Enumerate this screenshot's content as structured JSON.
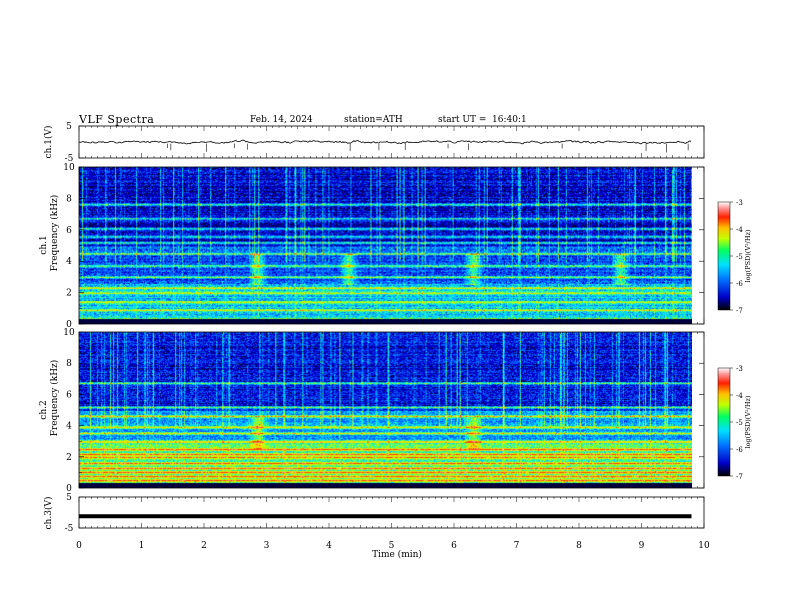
{
  "header": {
    "title": "VLF  Spectra",
    "date": "Feb. 14, 2024",
    "station": "station=ATH",
    "start_label": "start  UT  =",
    "start_time": "16:40:1"
  },
  "colors": {
    "colormap": [
      "#000040",
      "#0000c8",
      "#0060ff",
      "#00d0ff",
      "#40ff80",
      "#c0ff00",
      "#ffd000",
      "#ff4000",
      "#ff8080",
      "#ffffff"
    ],
    "trace": "#000000"
  },
  "chart_data": [
    {
      "type": "line",
      "id": "ch1",
      "ylabel": "ch.1(V)",
      "yticks": [
        "5",
        "-5"
      ],
      "ylim": [
        -5,
        5
      ],
      "xlim": [
        0,
        10
      ],
      "series": [
        {
          "description_level": 0,
          "x_end": 9.8
        }
      ]
    },
    {
      "type": "heatmap",
      "id": "spec1",
      "ylabel_lines": [
        "ch.1",
        "Frequency (kHz)"
      ],
      "yticks": [
        "0",
        "2",
        "4",
        "6",
        "8",
        "10"
      ],
      "ylim": [
        0,
        10
      ],
      "xlim": [
        0,
        10
      ],
      "x_end": 9.8,
      "colorbar": {
        "label": "log(PSD)(V²/Hz)",
        "ticks": [
          "-3",
          "-4",
          "-5",
          "-6",
          "-7"
        ],
        "range": [
          -7,
          -3
        ]
      },
      "bright_bands_khz": [
        0.3,
        0.9,
        1.4,
        2.0,
        2.3,
        3.0,
        3.7,
        4.5,
        5.2,
        5.6,
        6.1,
        6.7,
        7.6
      ],
      "bursts_min": [
        2.85,
        4.3,
        6.3,
        8.65
      ]
    },
    {
      "type": "heatmap",
      "id": "spec2",
      "ylabel_lines": [
        "ch.2",
        "Frequency (kHz)"
      ],
      "yticks": [
        "0",
        "2",
        "4",
        "6",
        "8",
        "10"
      ],
      "ylim": [
        0,
        10
      ],
      "xlim": [
        0,
        10
      ],
      "x_end": 9.8,
      "colorbar": {
        "label": "log(PSD)(V²/Hz)",
        "ticks": [
          "-3",
          "-4",
          "-5",
          "-6",
          "-7"
        ],
        "range": [
          -7,
          -3
        ]
      },
      "bright_bands_khz": [
        0.2,
        0.5,
        0.8,
        1.0,
        1.3,
        1.6,
        2.0,
        2.2,
        2.5,
        3.0,
        3.5,
        3.9,
        4.6,
        5.2,
        6.7
      ],
      "bursts_min": [
        2.85,
        6.3
      ]
    },
    {
      "type": "line",
      "id": "ch3",
      "ylabel": "ch.3(V)",
      "yticks": [
        "5",
        "-5"
      ],
      "ylim": [
        -5,
        5
      ],
      "xlim": [
        0,
        10
      ],
      "xlabel": "Time (min)",
      "xticks": [
        "0",
        "1",
        "2",
        "3",
        "4",
        "5",
        "6",
        "7",
        "8",
        "9",
        "10"
      ],
      "series": [
        {
          "level": -1.2,
          "x_end": 9.8
        }
      ]
    }
  ]
}
